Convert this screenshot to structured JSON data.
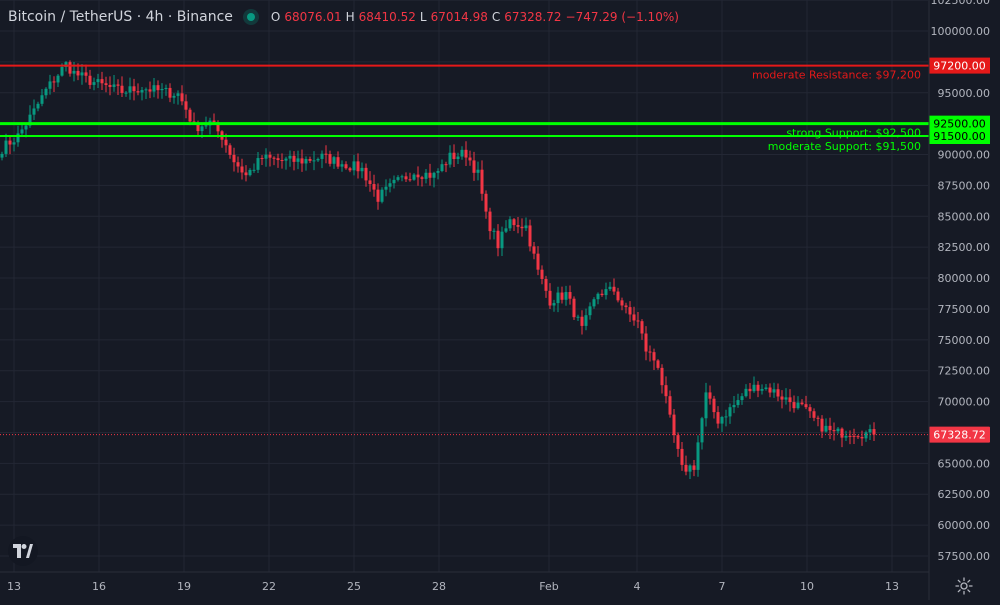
{
  "header": {
    "symbol": "Bitcoin / TetherUS · 4h · Binance",
    "ohlc": [
      {
        "key": "O",
        "value": "68076.01"
      },
      {
        "key": "H",
        "value": "68410.52"
      },
      {
        "key": "L",
        "value": "67014.98"
      },
      {
        "key": "C",
        "value": "67328.72"
      }
    ],
    "change": "−747.29 (−1.10%)"
  },
  "colors": {
    "background": "#161a25",
    "grid": "#232734",
    "up": "#089981",
    "down": "#f23645",
    "resistance": "#e51919",
    "support": "#00ff00",
    "text": "#d1d4dc",
    "axis_text": "#b2b5be"
  },
  "icons": {
    "logo": "tradingview-logo-icon",
    "settings": "gear-icon",
    "status": "market-status-dot"
  },
  "chart_data": {
    "type": "candlestick",
    "title": "Bitcoin / TetherUS · 4h · Binance",
    "ylim": [
      56000,
      103000
    ],
    "yticks": [
      "102500.00",
      "100000.00",
      "97500.00",
      "95000.00",
      "92500.00",
      "90000.00",
      "87500.00",
      "85000.00",
      "82500.00",
      "80000.00",
      "77500.00",
      "75000.00",
      "72500.00",
      "70000.00",
      "67500.00",
      "65000.00",
      "62500.00",
      "60000.00",
      "57500.00"
    ],
    "xticks": [
      "13",
      "16",
      "19",
      "22",
      "25",
      "28",
      "Feb",
      "4",
      "7",
      "10",
      "13"
    ],
    "xlim_candles": [
      0,
      218
    ],
    "grid": true,
    "last_price": {
      "value": 67328.72,
      "label": "67328.72"
    },
    "levels": [
      {
        "type": "resistance",
        "value": 97200,
        "tag": "97200.00",
        "label": "moderate Resistance: $97,200"
      },
      {
        "type": "support",
        "value": 92500,
        "tag": "92500.00",
        "label": "strong Support: $92,500"
      },
      {
        "type": "support",
        "value": 91500,
        "tag": "91500.00",
        "label": "moderate Support: $91,500"
      }
    ],
    "keyframes": [
      [
        0,
        90500
      ],
      [
        4,
        91500
      ],
      [
        8,
        93500
      ],
      [
        11,
        95200
      ],
      [
        14,
        96500
      ],
      [
        16,
        97300
      ],
      [
        18,
        96600
      ],
      [
        21,
        96100
      ],
      [
        25,
        95600
      ],
      [
        30,
        95100
      ],
      [
        35,
        95400
      ],
      [
        40,
        95100
      ],
      [
        44,
        94900
      ],
      [
        46,
        93700
      ],
      [
        48,
        92200
      ],
      [
        52,
        92600
      ],
      [
        55,
        91500
      ],
      [
        58,
        89500
      ],
      [
        61,
        88300
      ],
      [
        65,
        89700
      ],
      [
        70,
        89500
      ],
      [
        75,
        89500
      ],
      [
        80,
        89800
      ],
      [
        85,
        89300
      ],
      [
        90,
        88800
      ],
      [
        94,
        86500
      ],
      [
        98,
        87600
      ],
      [
        103,
        88600
      ],
      [
        108,
        88300
      ],
      [
        112,
        89800
      ],
      [
        116,
        90100
      ],
      [
        119,
        88400
      ],
      [
        121,
        85000
      ],
      [
        124,
        82700
      ],
      [
        127,
        84600
      ],
      [
        131,
        84200
      ],
      [
        134,
        80500
      ],
      [
        137,
        78200
      ],
      [
        141,
        78700
      ],
      [
        145,
        75800
      ],
      [
        149,
        78800
      ],
      [
        153,
        79000
      ],
      [
        156,
        77300
      ],
      [
        159,
        76400
      ],
      [
        161,
        74200
      ],
      [
        164,
        73000
      ],
      [
        167,
        68500
      ],
      [
        170,
        64500
      ],
      [
        173,
        64800
      ],
      [
        176,
        70500
      ],
      [
        179,
        68500
      ],
      [
        183,
        69700
      ],
      [
        186,
        70800
      ],
      [
        189,
        71300
      ],
      [
        192,
        71000
      ],
      [
        196,
        70200
      ],
      [
        200,
        69500
      ],
      [
        204,
        68200
      ],
      [
        208,
        67400
      ],
      [
        212,
        67600
      ],
      [
        218,
        67328.72
      ]
    ]
  }
}
